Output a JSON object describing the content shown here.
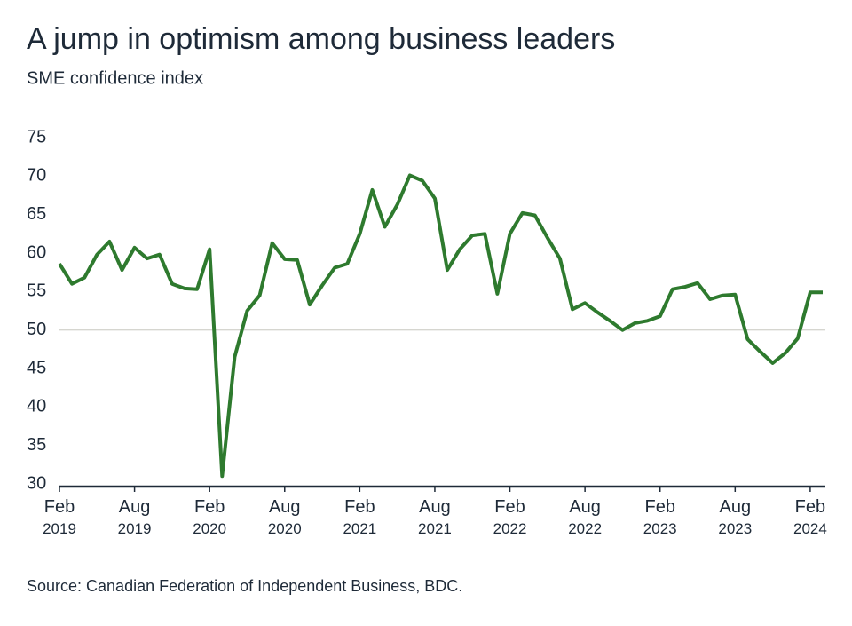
{
  "chart_data": {
    "type": "line",
    "title": "A jump in optimism among business leaders",
    "subtitle": "SME confidence index",
    "source": "Source: Canadian Federation of Independent Business, BDC.",
    "x": [
      "2019-02",
      "2019-03",
      "2019-04",
      "2019-05",
      "2019-06",
      "2019-07",
      "2019-08",
      "2019-09",
      "2019-10",
      "2019-11",
      "2019-12",
      "2020-01",
      "2020-02",
      "2020-03",
      "2020-04",
      "2020-05",
      "2020-06",
      "2020-07",
      "2020-08",
      "2020-09",
      "2020-10",
      "2020-11",
      "2020-12",
      "2021-01",
      "2021-02",
      "2021-03",
      "2021-04",
      "2021-05",
      "2021-06",
      "2021-07",
      "2021-08",
      "2021-09",
      "2021-10",
      "2021-11",
      "2021-12",
      "2022-01",
      "2022-02",
      "2022-03",
      "2022-04",
      "2022-05",
      "2022-06",
      "2022-07",
      "2022-08",
      "2022-09",
      "2022-10",
      "2022-11",
      "2022-12",
      "2023-01",
      "2023-02",
      "2023-03",
      "2023-04",
      "2023-05",
      "2023-06",
      "2023-07",
      "2023-08",
      "2023-09",
      "2023-10",
      "2023-11",
      "2023-12",
      "2024-01",
      "2024-02",
      "2024-03"
    ],
    "series": [
      {
        "name": "SME confidence index",
        "color": "#2e7a2e",
        "values": [
          58.6,
          56.0,
          56.8,
          59.8,
          61.5,
          57.8,
          60.7,
          59.3,
          59.8,
          56.0,
          55.4,
          55.3,
          60.5,
          31.0,
          46.5,
          52.5,
          54.5,
          61.3,
          59.2,
          59.1,
          53.3,
          55.8,
          58.1,
          58.6,
          62.5,
          68.2,
          63.4,
          66.3,
          70.1,
          69.4,
          67.1,
          57.8,
          60.5,
          62.3,
          62.5,
          54.7,
          62.5,
          65.2,
          64.9,
          62.0,
          59.3,
          52.7,
          53.5,
          52.3,
          51.2,
          50.0,
          50.9,
          51.2,
          51.8,
          55.3,
          55.6,
          56.1,
          54.0,
          54.5,
          54.6,
          48.8,
          47.2,
          45.7,
          47.0,
          48.9,
          54.9,
          54.9
        ]
      }
    ],
    "xlim": [
      "2019-02",
      "2024-03"
    ],
    "xticks": [
      {
        "value": "2019-02",
        "label": "Feb 2019"
      },
      {
        "value": "2019-08",
        "label": "Aug 2019"
      },
      {
        "value": "2020-02",
        "label": "Feb 2020"
      },
      {
        "value": "2020-08",
        "label": "Aug 2020"
      },
      {
        "value": "2021-02",
        "label": "Feb 2021"
      },
      {
        "value": "2021-08",
        "label": "Aug 2021"
      },
      {
        "value": "2022-02",
        "label": "Feb 2022"
      },
      {
        "value": "2022-08",
        "label": "Aug 2022"
      },
      {
        "value": "2023-02",
        "label": "Feb 2023"
      },
      {
        "value": "2023-08",
        "label": "Aug 2023"
      },
      {
        "value": "2024-02",
        "label": "Feb 2024"
      }
    ],
    "ylim": [
      30,
      75
    ],
    "yticks": [
      30,
      35,
      40,
      45,
      50,
      55,
      60,
      65,
      70,
      75
    ],
    "reference_line": 50
  }
}
